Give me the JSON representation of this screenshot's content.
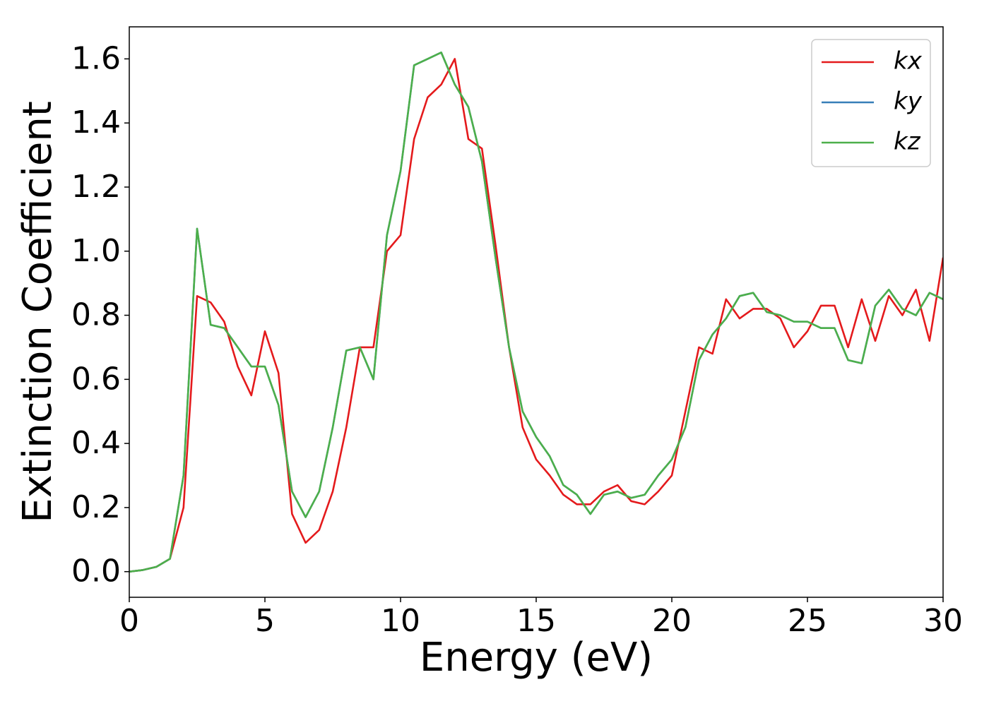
{
  "chart_data": {
    "type": "line",
    "xlabel": "Energy (eV)",
    "ylabel": "Extinction Coefficient",
    "x": [
      0,
      0.5,
      1,
      1.5,
      2,
      2.5,
      3,
      3.5,
      4,
      4.5,
      5,
      5.5,
      6,
      6.5,
      7,
      7.5,
      8,
      8.5,
      9,
      9.5,
      10,
      10.5,
      11,
      11.5,
      12,
      12.5,
      13,
      13.5,
      14,
      14.5,
      15,
      15.5,
      16,
      16.5,
      17,
      17.5,
      18,
      18.5,
      19,
      19.5,
      20,
      20.5,
      21,
      21.5,
      22,
      22.5,
      23,
      23.5,
      24,
      24.5,
      25,
      25.5,
      26,
      26.5,
      27,
      27.5,
      28,
      28.5,
      29,
      29.5,
      30
    ],
    "series": [
      {
        "name": "kx",
        "color": "#e41a1c",
        "values": [
          0.0,
          0.005,
          0.015,
          0.04,
          0.2,
          0.86,
          0.84,
          0.78,
          0.64,
          0.55,
          0.75,
          0.62,
          0.18,
          0.09,
          0.13,
          0.25,
          0.45,
          0.7,
          0.7,
          1.0,
          1.05,
          1.35,
          1.48,
          1.52,
          1.6,
          1.35,
          1.32,
          1.02,
          0.7,
          0.45,
          0.35,
          0.3,
          0.24,
          0.21,
          0.21,
          0.25,
          0.27,
          0.22,
          0.21,
          0.25,
          0.3,
          0.5,
          0.7,
          0.68,
          0.85,
          0.79,
          0.82,
          0.82,
          0.79,
          0.7,
          0.75,
          0.83,
          0.83,
          0.7,
          0.85,
          0.72,
          0.86,
          0.8,
          0.88,
          0.72,
          0.98
        ]
      },
      {
        "name": "ky",
        "color": "#377eb8",
        "values": [
          0.0,
          0.005,
          0.015,
          0.04,
          0.3,
          1.07,
          0.77,
          0.76,
          0.7,
          0.64,
          0.64,
          0.52,
          0.25,
          0.17,
          0.25,
          0.45,
          0.69,
          0.7,
          0.6,
          1.05,
          1.25,
          1.58,
          1.6,
          1.62,
          1.52,
          1.45,
          1.28,
          0.98,
          0.7,
          0.5,
          0.42,
          0.36,
          0.27,
          0.24,
          0.18,
          0.24,
          0.25,
          0.23,
          0.24,
          0.3,
          0.35,
          0.45,
          0.66,
          0.74,
          0.79,
          0.86,
          0.87,
          0.81,
          0.8,
          0.78,
          0.78,
          0.76,
          0.76,
          0.66,
          0.65,
          0.83,
          0.88,
          0.82,
          0.8,
          0.87,
          0.85
        ]
      },
      {
        "name": "kz",
        "color": "#4daf4a",
        "values": [
          0.0,
          0.005,
          0.015,
          0.04,
          0.3,
          1.07,
          0.77,
          0.76,
          0.7,
          0.64,
          0.64,
          0.52,
          0.25,
          0.17,
          0.25,
          0.45,
          0.69,
          0.7,
          0.6,
          1.05,
          1.25,
          1.58,
          1.6,
          1.62,
          1.52,
          1.45,
          1.28,
          0.98,
          0.7,
          0.5,
          0.42,
          0.36,
          0.27,
          0.24,
          0.18,
          0.24,
          0.25,
          0.23,
          0.24,
          0.3,
          0.35,
          0.45,
          0.66,
          0.74,
          0.79,
          0.86,
          0.87,
          0.81,
          0.8,
          0.78,
          0.78,
          0.76,
          0.76,
          0.66,
          0.65,
          0.83,
          0.88,
          0.82,
          0.8,
          0.87,
          0.85
        ]
      }
    ],
    "xlim": [
      0,
      30
    ],
    "xticks": [
      0,
      5,
      10,
      15,
      20,
      25,
      30
    ],
    "ylim": [
      -0.08,
      1.7
    ],
    "yticks": [
      {
        "value": 0,
        "label": "0.0"
      },
      0.2,
      0.4,
      0.6,
      0.8,
      {
        "value": 1,
        "label": "1.0"
      },
      1.2,
      1.4,
      1.6
    ],
    "legend": "upper right",
    "grid": false
  }
}
